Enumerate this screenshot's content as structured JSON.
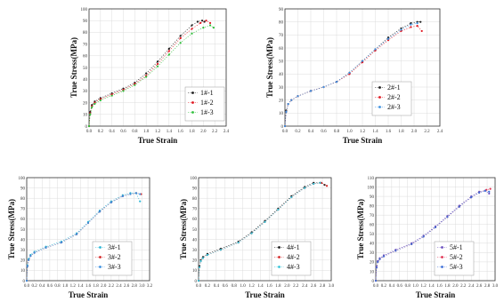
{
  "colors": {
    "s1": "#1a1a1a",
    "s2": "#e0141e",
    "s3": "#2ebf3a",
    "s3_blue": "#3b8fe0",
    "s3_cyan": "#2bb6d6",
    "s4_red": "#d42424",
    "s4_cyan": "#34c2d8",
    "s5_red": "#e03050",
    "s5_blue": "#3d6fd8",
    "s5_purple": "#6a4fbf",
    "grid": "#dcdcdc",
    "axis": "#333333"
  },
  "chart_data": [
    {
      "type": "scatter",
      "xlabel": "True Strain",
      "ylabel": "True Stress(MPa)",
      "xlim": [
        0.0,
        2.4
      ],
      "ylim": [
        0,
        100
      ],
      "x_ticks": [
        "0.0",
        "0.2",
        "0.4",
        "0.6",
        "0.8",
        "1.0",
        "1.2",
        "1.4",
        "1.6",
        "1.8",
        "2.0",
        "2.2",
        "2.4"
      ],
      "y_ticks": [
        "0",
        "10",
        "20",
        "30",
        "40",
        "50",
        "60",
        "70",
        "80",
        "90",
        "100"
      ],
      "grid": true,
      "legend_position": "right",
      "series": [
        {
          "name": "1#-1",
          "color": "#1a1a1a",
          "x": [
            0.0,
            0.02,
            0.05,
            0.1,
            0.2,
            0.4,
            0.6,
            0.8,
            1.0,
            1.2,
            1.4,
            1.6,
            1.8,
            1.9,
            1.98,
            2.02
          ],
          "y": [
            0,
            12,
            18,
            21,
            24,
            28,
            32,
            37,
            45,
            55,
            66,
            77,
            86,
            89,
            90,
            89
          ]
        },
        {
          "name": "1#-2",
          "color": "#e0141e",
          "x": [
            0.0,
            0.02,
            0.05,
            0.1,
            0.2,
            0.4,
            0.6,
            0.8,
            1.0,
            1.2,
            1.4,
            1.6,
            1.8,
            1.95,
            2.05,
            2.12
          ],
          "y": [
            0,
            11,
            17,
            20,
            23,
            27,
            31,
            36,
            43,
            53,
            64,
            75,
            83,
            88,
            90,
            88
          ]
        },
        {
          "name": "1#-3",
          "color": "#2ebf3a",
          "x": [
            0.0,
            0.02,
            0.05,
            0.1,
            0.2,
            0.4,
            0.6,
            0.8,
            1.0,
            1.2,
            1.4,
            1.6,
            1.8,
            2.0,
            2.12,
            2.18
          ],
          "y": [
            0,
            10,
            16,
            19,
            22,
            26,
            30,
            35,
            42,
            51,
            61,
            71,
            79,
            84,
            86,
            84
          ]
        }
      ]
    },
    {
      "type": "scatter",
      "xlabel": "True Strain",
      "ylabel": "True Stress(MPa)",
      "xlim": [
        0.0,
        2.4
      ],
      "ylim": [
        0,
        90
      ],
      "x_ticks": [
        "0.0",
        "0.2",
        "0.4",
        "0.6",
        "0.8",
        "1.0",
        "1.2",
        "1.4",
        "1.6",
        "1.8",
        "2.0",
        "2.2",
        "2.4"
      ],
      "y_ticks": [
        "0",
        "10",
        "20",
        "30",
        "40",
        "50",
        "60",
        "70",
        "80",
        "90"
      ],
      "grid": true,
      "legend_position": "right",
      "series": [
        {
          "name": "2#-1",
          "color": "#1a1a1a",
          "x": [
            0.0,
            0.02,
            0.05,
            0.1,
            0.2,
            0.4,
            0.6,
            0.8,
            1.0,
            1.2,
            1.4,
            1.6,
            1.8,
            1.95,
            2.05,
            2.1
          ],
          "y": [
            0,
            12,
            17,
            20,
            23,
            27,
            30,
            34,
            41,
            50,
            59,
            68,
            75,
            79,
            80,
            80
          ]
        },
        {
          "name": "2#-2",
          "color": "#e0141e",
          "x": [
            0.0,
            0.02,
            0.05,
            0.1,
            0.2,
            0.4,
            0.6,
            0.8,
            1.0,
            1.2,
            1.4,
            1.6,
            1.8,
            1.95,
            2.05,
            2.12
          ],
          "y": [
            0,
            11,
            17,
            20,
            23,
            27,
            30,
            34,
            40,
            49,
            58,
            66,
            73,
            76,
            77,
            73
          ]
        },
        {
          "name": "2#-3",
          "color": "#3b8fe0",
          "x": [
            0.0,
            0.02,
            0.05,
            0.1,
            0.2,
            0.4,
            0.6,
            0.8,
            1.0,
            1.2,
            1.4,
            1.6,
            1.8,
            1.95,
            2.05
          ],
          "y": [
            0,
            11,
            17,
            20,
            23,
            27,
            30,
            34,
            41,
            50,
            59,
            67,
            74,
            78,
            79
          ]
        }
      ]
    },
    {
      "type": "scatter",
      "xlabel": "True Strain",
      "ylabel": "True Stress(MPa)",
      "xlim": [
        0.0,
        3.2
      ],
      "ylim": [
        0,
        100
      ],
      "x_ticks": [
        "0.0",
        "0.2",
        "0.4",
        "0.6",
        "0.8",
        "1.0",
        "1.2",
        "1.4",
        "1.6",
        "1.8",
        "2.0",
        "2.2",
        "2.4",
        "2.6",
        "2.8",
        "3.0",
        "3.2"
      ],
      "y_ticks": [
        "0",
        "10",
        "20",
        "30",
        "40",
        "50",
        "60",
        "70",
        "80",
        "90",
        "100"
      ],
      "grid": true,
      "legend_position": "right",
      "series": [
        {
          "name": "3#-1",
          "color": "#2bb6d6",
          "x": [
            0.0,
            0.02,
            0.05,
            0.1,
            0.2,
            0.5,
            0.9,
            1.3,
            1.6,
            1.9,
            2.2,
            2.5,
            2.7,
            2.85,
            2.95
          ],
          "y": [
            0,
            15,
            21,
            25,
            28,
            33,
            38,
            46,
            57,
            68,
            77,
            83,
            85,
            85,
            77
          ]
        },
        {
          "name": "3#-2",
          "color": "#d42424",
          "x": [
            0.0,
            0.02,
            0.05,
            0.1,
            0.2,
            0.5,
            0.9,
            1.3,
            1.6,
            1.9,
            2.2,
            2.5,
            2.7,
            2.85,
            2.98
          ],
          "y": [
            0,
            14,
            20,
            24,
            27,
            32,
            37,
            45,
            56,
            67,
            76,
            82,
            84,
            85,
            84
          ]
        },
        {
          "name": "3#-3",
          "color": "#3b8fe0",
          "x": [
            0.0,
            0.02,
            0.05,
            0.1,
            0.2,
            0.5,
            0.9,
            1.3,
            1.6,
            1.9,
            2.2,
            2.5,
            2.7,
            2.85,
            2.95
          ],
          "y": [
            0,
            14,
            20,
            24,
            27,
            32,
            37,
            45,
            56,
            67,
            76,
            82,
            84,
            85,
            84
          ]
        }
      ]
    },
    {
      "type": "scatter",
      "xlabel": "True Strain",
      "ylabel": "True Stress(MPa)",
      "xlim": [
        0.0,
        3.0
      ],
      "ylim": [
        0,
        100
      ],
      "x_ticks": [
        "0.0",
        "0.2",
        "0.4",
        "0.6",
        "0.8",
        "1.0",
        "1.2",
        "1.4",
        "1.6",
        "1.8",
        "2.0",
        "2.2",
        "2.4",
        "2.6",
        "2.8",
        "3.0"
      ],
      "y_ticks": [
        "0",
        "10",
        "20",
        "30",
        "40",
        "50",
        "60",
        "70",
        "80",
        "90",
        "100"
      ],
      "grid": true,
      "legend_position": "right",
      "series": [
        {
          "name": "4#-1",
          "color": "#1a1a1a",
          "x": [
            0.0,
            0.02,
            0.05,
            0.1,
            0.2,
            0.5,
            0.9,
            1.2,
            1.5,
            1.8,
            2.1,
            2.4,
            2.6,
            2.75,
            2.85
          ],
          "y": [
            0,
            14,
            20,
            23,
            26,
            31,
            38,
            47,
            58,
            70,
            82,
            91,
            95,
            95,
            93
          ]
        },
        {
          "name": "4#-2",
          "color": "#d42424",
          "x": [
            0.0,
            0.02,
            0.05,
            0.1,
            0.2,
            0.5,
            0.9,
            1.2,
            1.5,
            1.8,
            2.1,
            2.4,
            2.6,
            2.78,
            2.9
          ],
          "y": [
            0,
            13,
            19,
            22,
            25,
            30,
            37,
            46,
            57,
            69,
            81,
            90,
            94,
            95,
            92
          ]
        },
        {
          "name": "4#-3",
          "color": "#34c2d8",
          "x": [
            0.0,
            0.02,
            0.05,
            0.1,
            0.2,
            0.5,
            0.9,
            1.2,
            1.5,
            1.8,
            2.1,
            2.4,
            2.6,
            2.75
          ],
          "y": [
            0,
            13,
            19,
            22,
            25,
            30,
            37,
            46,
            57,
            69,
            81,
            90,
            94,
            95
          ]
        }
      ]
    },
    {
      "type": "scatter",
      "xlabel": "True Strain",
      "ylabel": "True Stress(MPa)",
      "xlim": [
        0.0,
        3.0
      ],
      "ylim": [
        0,
        110
      ],
      "x_ticks": [
        "0.0",
        "0.2",
        "0.4",
        "0.6",
        "0.8",
        "1.0",
        "1.2",
        "1.4",
        "1.6",
        "1.8",
        "2.0",
        "2.2",
        "2.4",
        "2.6",
        "2.8",
        "3.0"
      ],
      "y_ticks": [
        "0",
        "10",
        "20",
        "30",
        "40",
        "50",
        "60",
        "70",
        "80",
        "90",
        "100",
        "110"
      ],
      "grid": true,
      "legend_position": "right",
      "series": [
        {
          "name": "5#-1",
          "color": "#6a4fbf",
          "x": [
            0.0,
            0.02,
            0.05,
            0.1,
            0.2,
            0.5,
            0.9,
            1.2,
            1.5,
            1.8,
            2.1,
            2.4,
            2.6,
            2.75,
            2.85
          ],
          "y": [
            0,
            15,
            21,
            24,
            27,
            33,
            40,
            48,
            58,
            69,
            80,
            90,
            95,
            96,
            93
          ]
        },
        {
          "name": "5#-2",
          "color": "#e03050",
          "x": [
            0.0,
            0.02,
            0.05,
            0.1,
            0.2,
            0.5,
            0.9,
            1.2,
            1.5,
            1.8,
            2.1,
            2.4,
            2.6,
            2.78,
            2.88
          ],
          "y": [
            0,
            14,
            20,
            23,
            26,
            32,
            39,
            47,
            57,
            68,
            79,
            89,
            94,
            97,
            98
          ]
        },
        {
          "name": "5#-3",
          "color": "#3d6fd8",
          "x": [
            0.0,
            0.02,
            0.05,
            0.1,
            0.2,
            0.5,
            0.9,
            1.2,
            1.5,
            1.8,
            2.1,
            2.4,
            2.6,
            2.75,
            2.85
          ],
          "y": [
            0,
            14,
            20,
            23,
            26,
            32,
            39,
            47,
            57,
            68,
            79,
            89,
            94,
            96,
            95
          ]
        }
      ]
    }
  ]
}
